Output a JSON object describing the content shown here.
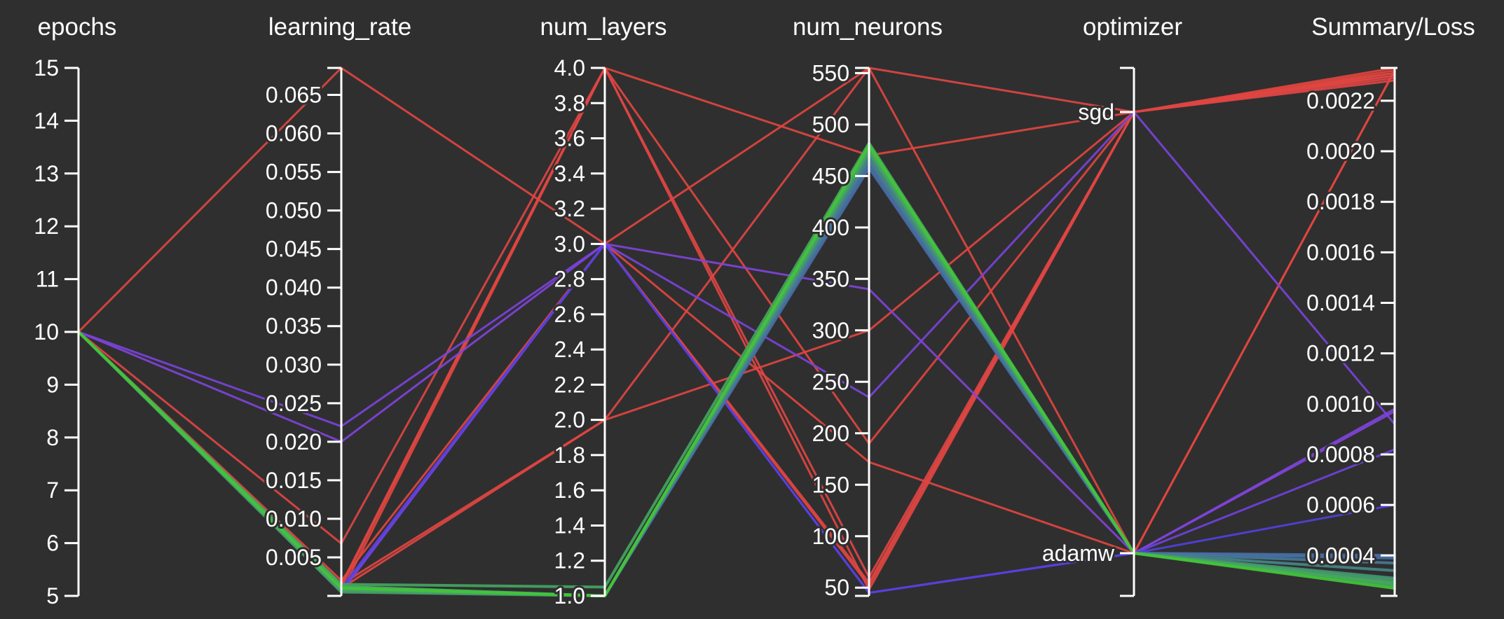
{
  "chart_data": {
    "type": "parallel_coordinates",
    "axes": [
      {
        "key": "epochs",
        "label": "epochs",
        "kind": "numeric",
        "range": [
          5,
          15
        ],
        "ticks": [
          5,
          6,
          7,
          8,
          9,
          10,
          11,
          12,
          13,
          14,
          15
        ],
        "tick_labels": [
          "5",
          "6",
          "7",
          "8",
          "9",
          "10",
          "11",
          "12",
          "13",
          "14",
          "15"
        ]
      },
      {
        "key": "learning_rate",
        "label": "learning_rate",
        "kind": "numeric",
        "range": [
          0.0,
          0.0685
        ],
        "ticks": [
          0.005,
          0.01,
          0.015,
          0.02,
          0.025,
          0.03,
          0.035,
          0.04,
          0.045,
          0.05,
          0.055,
          0.06,
          0.065
        ],
        "tick_labels": [
          "0.005",
          "0.010",
          "0.015",
          "0.020",
          "0.025",
          "0.030",
          "0.035",
          "0.040",
          "0.045",
          "0.050",
          "0.055",
          "0.060",
          "0.065"
        ]
      },
      {
        "key": "num_layers",
        "label": "num_layers",
        "kind": "numeric",
        "range": [
          1.0,
          4.0
        ],
        "ticks": [
          1.0,
          1.2,
          1.4,
          1.6,
          1.8,
          2.0,
          2.2,
          2.4,
          2.6,
          2.8,
          3.0,
          3.2,
          3.4,
          3.6,
          3.8,
          4.0
        ],
        "tick_labels": [
          "1.0",
          "1.2",
          "1.4",
          "1.6",
          "1.8",
          "2.0",
          "2.2",
          "2.4",
          "2.6",
          "2.8",
          "3.0",
          "3.2",
          "3.4",
          "3.6",
          "3.8",
          "4.0"
        ]
      },
      {
        "key": "num_neurons",
        "label": "num_neurons",
        "kind": "numeric",
        "range": [
          42,
          555
        ],
        "ticks": [
          50,
          100,
          150,
          200,
          250,
          300,
          350,
          400,
          450,
          500,
          550
        ],
        "tick_labels": [
          "50",
          "100",
          "150",
          "200",
          "250",
          "300",
          "350",
          "400",
          "450",
          "500",
          "550"
        ]
      },
      {
        "key": "optimizer",
        "label": "optimizer",
        "kind": "categorical",
        "categories": [
          "adamw",
          "sgd"
        ],
        "tick_labels": [
          "adamw",
          "sgd"
        ]
      },
      {
        "key": "loss",
        "label": "Summary/Loss",
        "kind": "numeric",
        "range": [
          0.00024,
          0.00233
        ],
        "ticks": [
          0.0004,
          0.0006,
          0.0008,
          0.001,
          0.0012,
          0.0014,
          0.0016,
          0.0018,
          0.002,
          0.0022
        ],
        "tick_labels": [
          "0.0004",
          "0.0006",
          "0.0008",
          "0.0010",
          "0.0012",
          "0.0014",
          "0.0016",
          "0.0018",
          "0.0020",
          "0.0022"
        ]
      }
    ],
    "color_scale": {
      "metric": "loss",
      "colors": [
        "#43c43a",
        "#4a3fe0",
        "#9b45d6",
        "#e0453e"
      ]
    },
    "runs": [
      {
        "epochs": 10,
        "learning_rate": 0.001,
        "num_layers": 1.0,
        "num_neurons": 480,
        "optimizer": "adamw",
        "loss": 0.00027
      },
      {
        "epochs": 10,
        "learning_rate": 0.0012,
        "num_layers": 1.0,
        "num_neurons": 478,
        "optimizer": "adamw",
        "loss": 0.00028
      },
      {
        "epochs": 10,
        "learning_rate": 0.0008,
        "num_layers": 1.0,
        "num_neurons": 476,
        "optimizer": "adamw",
        "loss": 0.00029
      },
      {
        "epochs": 10,
        "learning_rate": 0.0015,
        "num_layers": 1.05,
        "num_neurons": 482,
        "optimizer": "adamw",
        "loss": 0.00029
      },
      {
        "epochs": 10,
        "learning_rate": 0.0005,
        "num_layers": 1.0,
        "num_neurons": 474,
        "optimizer": "adamw",
        "loss": 0.0003
      },
      {
        "epochs": 10,
        "learning_rate": 0.001,
        "num_layers": 1.0,
        "num_neurons": 472,
        "optimizer": "adamw",
        "loss": 0.00031
      },
      {
        "epochs": 10,
        "learning_rate": 0.0007,
        "num_layers": 1.0,
        "num_neurons": 468,
        "optimizer": "adamw",
        "loss": 0.00034
      },
      {
        "epochs": 10,
        "learning_rate": 0.0012,
        "num_layers": 1.0,
        "num_neurons": 465,
        "optimizer": "adamw",
        "loss": 0.00037
      },
      {
        "epochs": 10,
        "learning_rate": 0.0009,
        "num_layers": 1.0,
        "num_neurons": 462,
        "optimizer": "adamw",
        "loss": 0.00039
      },
      {
        "epochs": 10,
        "learning_rate": 0.0011,
        "num_layers": 1.0,
        "num_neurons": 458,
        "optimizer": "adamw",
        "loss": 0.0004
      },
      {
        "epochs": 10,
        "learning_rate": 0.001,
        "num_layers": 3.0,
        "num_neurons": 45,
        "optimizer": "adamw",
        "loss": 0.0006
      },
      {
        "epochs": 10,
        "learning_rate": 0.0005,
        "num_layers": 3.0,
        "num_neurons": 45,
        "optimizer": "adamw",
        "loss": 0.00082
      },
      {
        "epochs": 10,
        "learning_rate": 0.0008,
        "num_layers": 3.0,
        "num_neurons": 45,
        "optimizer": "adamw",
        "loss": 0.00097
      },
      {
        "epochs": 10,
        "learning_rate": 0.022,
        "num_layers": 3.0,
        "num_neurons": 235,
        "optimizer": "sgd",
        "loss": 0.00092
      },
      {
        "epochs": 10,
        "learning_rate": 0.02,
        "num_layers": 3.0,
        "num_neurons": 340,
        "optimizer": "adamw",
        "loss": 0.00098
      },
      {
        "epochs": 10,
        "learning_rate": 0.0068,
        "num_layers": 4.0,
        "num_neurons": 60,
        "optimizer": "sgd",
        "loss": 0.00228
      },
      {
        "epochs": 10,
        "learning_rate": 0.0685,
        "num_layers": 3.0,
        "num_neurons": 555,
        "optimizer": "adamw",
        "loss": 0.00232
      },
      {
        "epochs": 10,
        "learning_rate": 0.001,
        "num_layers": 2.0,
        "num_neurons": 555,
        "optimizer": "sgd",
        "loss": 0.00229
      },
      {
        "epochs": 10,
        "learning_rate": 0.0015,
        "num_layers": 2.0,
        "num_neurons": 300,
        "optimizer": "sgd",
        "loss": 0.00231
      },
      {
        "epochs": 10,
        "learning_rate": 0.002,
        "num_layers": 3.0,
        "num_neurons": 172,
        "optimizer": "adamw",
        "loss": 0.00232
      },
      {
        "epochs": 10,
        "learning_rate": 0.001,
        "num_layers": 3.0,
        "num_neurons": 55,
        "optimizer": "sgd",
        "loss": 0.0023
      },
      {
        "epochs": 10,
        "learning_rate": 0.0005,
        "num_layers": 4.0,
        "num_neurons": 190,
        "optimizer": "sgd",
        "loss": 0.00232
      },
      {
        "epochs": 10,
        "learning_rate": 0.0012,
        "num_layers": 4.0,
        "num_neurons": 470,
        "optimizer": "sgd",
        "loss": 0.00233
      },
      {
        "epochs": 10,
        "learning_rate": 0.0008,
        "num_layers": 3.0,
        "num_neurons": 52,
        "optimizer": "sgd",
        "loss": 0.00231
      },
      {
        "epochs": 10,
        "learning_rate": 0.0015,
        "num_layers": 4.0,
        "num_neurons": 48,
        "optimizer": "sgd",
        "loss": 0.0023
      }
    ]
  }
}
